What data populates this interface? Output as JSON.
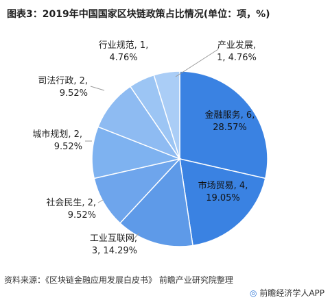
{
  "title": "图表3：2019年中国国家区块链政策占比情况(单位：项，%)",
  "source": "资料来源：《区块链金融应用发展白皮书》 前瞻产业研究院整理",
  "footer": {
    "logo": "◎",
    "text": "前瞻经济学人APP"
  },
  "colors": {
    "slice_fill": "#7eb2f0",
    "slice_accent": "#3a82e2",
    "slice_stroke": "#ffffff"
  },
  "chart_data": {
    "type": "pie",
    "title": "图表3：2019年中国国家区块链政策占比情况(单位：项，%)",
    "slices": [
      {
        "name": "金融服务",
        "value": 6,
        "percent": "28.57%",
        "label_line1": "金融服务, 6,",
        "label_line2": "28.57%",
        "color": "#3a82e2"
      },
      {
        "name": "市场贸易",
        "value": 4,
        "percent": "19.05%",
        "label_line1": "市场贸易, 4,",
        "label_line2": "19.05%",
        "color": "#3a82e2"
      },
      {
        "name": "工业互联网",
        "value": 3,
        "percent": "14.29%",
        "label_line1": "工业互联网,",
        "label_line2": "3, 14.29%",
        "color": "#5e9ae8"
      },
      {
        "name": "社会民生",
        "value": 2,
        "percent": "9.52%",
        "label_line1": "社会民生, 2,",
        "label_line2": "9.52%",
        "color": "#6ea5ec"
      },
      {
        "name": "城市规划",
        "value": 2,
        "percent": "9.52%",
        "label_line1": "城市规划, 2,",
        "label_line2": "9.52%",
        "color": "#7eb2f0"
      },
      {
        "name": "司法行政",
        "value": 2,
        "percent": "9.52%",
        "label_line1": "司法行政, 2,",
        "label_line2": "9.52%",
        "color": "#8ebbf2"
      },
      {
        "name": "行业规范",
        "value": 1,
        "percent": "4.76%",
        "label_line1": "行业规范, 1,",
        "label_line2": "4.76%",
        "color": "#9cc5f4"
      },
      {
        "name": "产业发展",
        "value": 1,
        "percent": "4.76%",
        "label_line1": "产业发展,",
        "label_line2": "1, 4.76%",
        "color": "#aacdf6"
      }
    ]
  }
}
